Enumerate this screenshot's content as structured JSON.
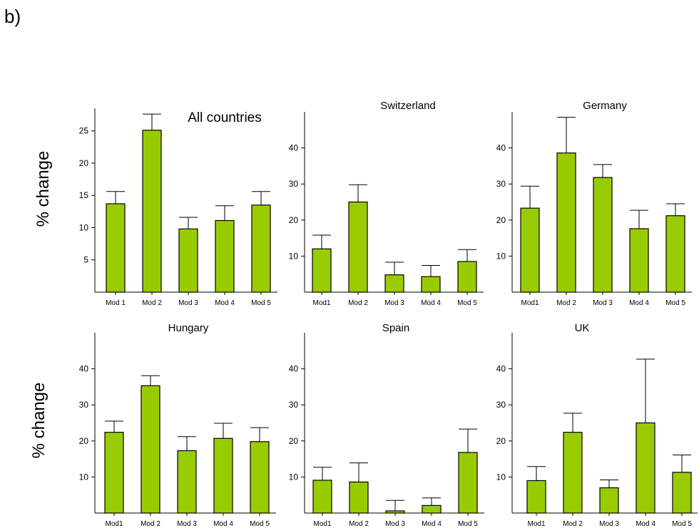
{
  "panel_label": "b)",
  "chart_data": [
    {
      "type": "bar",
      "title": "All countries",
      "ylabel": "% change",
      "categories": [
        "Mod 1",
        "Mod 2",
        "Mod 3",
        "Mod 4",
        "Mod 5"
      ],
      "values": [
        13.7,
        25.1,
        9.8,
        11.1,
        13.5
      ],
      "errors": [
        1.9,
        2.5,
        1.8,
        2.3,
        2.1
      ],
      "yticks": [
        5,
        10,
        15,
        20,
        25
      ],
      "ylim": [
        0,
        28.5
      ]
    },
    {
      "type": "bar",
      "title": "Switzerland",
      "ylabel": "",
      "categories": [
        "Mod1",
        "Mod 2",
        "Mod 3",
        "Mod 4",
        "Mod 5"
      ],
      "values": [
        12,
        25,
        4.8,
        4.3,
        8.5
      ],
      "errors": [
        3.8,
        4.8,
        3.5,
        3.1,
        3.3
      ],
      "yticks": [
        10,
        20,
        30,
        40
      ],
      "ylim": [
        0,
        50
      ]
    },
    {
      "type": "bar",
      "title": "Germany",
      "ylabel": "",
      "categories": [
        "Mod1",
        "Mod 2",
        "Mod 3",
        "Mod 4",
        "Mod 5"
      ],
      "values": [
        23.3,
        38.6,
        31.8,
        17.6,
        21.2
      ],
      "errors": [
        6.1,
        9.9,
        3.6,
        5.1,
        3.3
      ],
      "yticks": [
        10,
        20,
        30,
        40
      ],
      "ylim": [
        0,
        50
      ]
    },
    {
      "type": "bar",
      "title": "Hungary",
      "ylabel": "% change",
      "categories": [
        "Mod1",
        "Mod 2",
        "Mod 3",
        "Mod 4",
        "Mod 5"
      ],
      "values": [
        22.4,
        35.3,
        17.3,
        20.7,
        19.8
      ],
      "errors": [
        3.1,
        2.8,
        3.9,
        4.2,
        3.9
      ],
      "yticks": [
        10,
        20,
        30,
        40
      ],
      "ylim": [
        0,
        50
      ]
    },
    {
      "type": "bar",
      "title": "Spain",
      "ylabel": "",
      "categories": [
        "Mod1",
        "Mod 2",
        "Mod 3",
        "Mod 4",
        "Mod 5"
      ],
      "values": [
        9.1,
        8.6,
        0.6,
        2.1,
        16.8
      ],
      "errors": [
        3.6,
        5.3,
        2.9,
        2.1,
        6.5
      ],
      "yticks": [
        10,
        20,
        30,
        40
      ],
      "ylim": [
        0,
        50
      ]
    },
    {
      "type": "bar",
      "title": "UK",
      "ylabel": "",
      "categories": [
        "Mod1",
        "Mod 2",
        "Mod 3",
        "Mod 4",
        "Mod 5"
      ],
      "values": [
        9,
        22.4,
        7,
        25,
        11.3
      ],
      "errors": [
        3.9,
        5.3,
        2.2,
        17.7,
        4.8
      ],
      "yticks": [
        10,
        20,
        30,
        40
      ],
      "ylim": [
        0,
        50
      ]
    }
  ]
}
